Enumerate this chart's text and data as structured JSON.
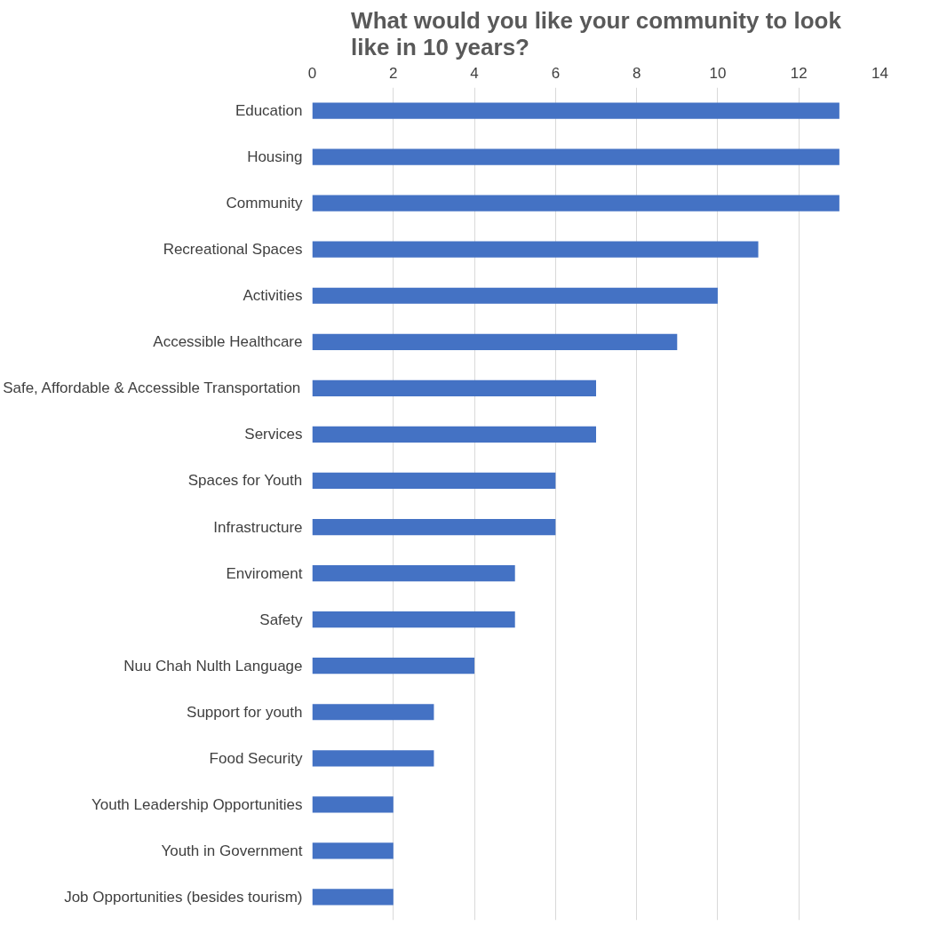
{
  "chart_data": {
    "type": "bar",
    "orientation": "horizontal",
    "title": "What would you like your community to look\nlike in 10 years?",
    "categories": [
      "Education",
      "Housing",
      "Community",
      "Recreational Spaces",
      "Activities",
      "Accessible Healthcare",
      "Safe, Affordable & Accessible Transportation",
      "Services",
      "Spaces for Youth",
      "Infrastructure",
      "Enviroment",
      "Safety",
      "Nuu Chah Nulth Language",
      "Support for youth",
      "Food Security",
      "Youth Leadership Opportunities",
      "Youth in Government",
      "Job Opportunities (besides tourism)"
    ],
    "values": [
      13,
      13,
      13,
      11,
      10,
      9,
      7,
      7,
      6,
      6,
      5,
      5,
      4,
      3,
      3,
      2,
      2,
      2
    ],
    "color": "#4472c4",
    "xlim": [
      0,
      14
    ],
    "xticks": [
      0,
      2,
      4,
      6,
      8,
      10,
      12,
      14
    ],
    "grid": "x"
  }
}
